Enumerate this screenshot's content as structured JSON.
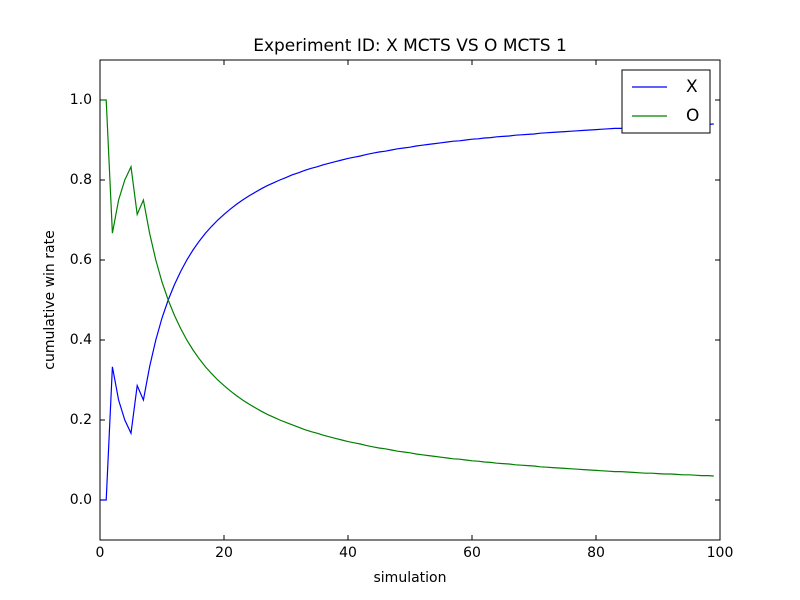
{
  "chart_data": {
    "type": "line",
    "title": "Experiment ID: X MCTS VS O MCTS 1",
    "x_label": "simulation",
    "y_label": "cumulative win rate",
    "x": [
      0,
      1,
      2,
      3,
      4,
      5,
      6,
      7,
      8,
      9,
      10,
      11,
      12,
      13,
      14,
      15,
      16,
      17,
      18,
      19,
      20,
      21,
      22,
      23,
      24,
      25,
      26,
      27,
      28,
      29,
      30,
      31,
      32,
      33,
      34,
      35,
      36,
      37,
      38,
      39,
      40,
      41,
      42,
      43,
      44,
      45,
      46,
      47,
      48,
      49,
      50,
      51,
      52,
      53,
      54,
      55,
      56,
      57,
      58,
      59,
      60,
      61,
      62,
      63,
      64,
      65,
      66,
      67,
      68,
      69,
      70,
      71,
      72,
      73,
      74,
      75,
      76,
      77,
      78,
      79,
      80,
      81,
      82,
      83,
      84,
      85,
      86,
      87,
      88,
      89,
      90,
      91,
      92,
      93,
      94,
      95,
      96,
      97,
      98,
      99
    ],
    "series": [
      {
        "name": "X",
        "color": "#0000ff",
        "values": [
          0,
          0,
          0.333,
          0.25,
          0.2,
          0.167,
          0.286,
          0.25,
          0.333,
          0.4,
          0.455,
          0.5,
          0.538,
          0.571,
          0.6,
          0.625,
          0.647,
          0.667,
          0.684,
          0.7,
          0.714,
          0.727,
          0.739,
          0.75,
          0.76,
          0.769,
          0.778,
          0.786,
          0.793,
          0.8,
          0.806,
          0.813,
          0.818,
          0.824,
          0.829,
          0.833,
          0.838,
          0.842,
          0.846,
          0.85,
          0.854,
          0.857,
          0.86,
          0.864,
          0.867,
          0.87,
          0.872,
          0.875,
          0.878,
          0.88,
          0.882,
          0.885,
          0.887,
          0.889,
          0.891,
          0.893,
          0.895,
          0.897,
          0.898,
          0.9,
          0.902,
          0.903,
          0.905,
          0.906,
          0.908,
          0.909,
          0.91,
          0.912,
          0.913,
          0.914,
          0.915,
          0.917,
          0.918,
          0.919,
          0.92,
          0.921,
          0.922,
          0.923,
          0.924,
          0.925,
          0.926,
          0.927,
          0.928,
          0.929,
          0.929,
          0.93,
          0.931,
          0.932,
          0.933,
          0.933,
          0.934,
          0.935,
          0.935,
          0.936,
          0.937,
          0.938,
          0.938,
          0.939,
          0.939,
          0.94
        ]
      },
      {
        "name": "O",
        "color": "#008000",
        "values": [
          1,
          1,
          0.667,
          0.75,
          0.8,
          0.833,
          0.714,
          0.75,
          0.667,
          0.6,
          0.545,
          0.5,
          0.462,
          0.429,
          0.4,
          0.375,
          0.353,
          0.333,
          0.316,
          0.3,
          0.286,
          0.273,
          0.261,
          0.25,
          0.24,
          0.231,
          0.222,
          0.214,
          0.207,
          0.2,
          0.194,
          0.188,
          0.182,
          0.176,
          0.171,
          0.167,
          0.162,
          0.158,
          0.154,
          0.15,
          0.146,
          0.143,
          0.14,
          0.136,
          0.133,
          0.13,
          0.128,
          0.125,
          0.122,
          0.12,
          0.118,
          0.115,
          0.113,
          0.111,
          0.109,
          0.107,
          0.105,
          0.103,
          0.102,
          0.1,
          0.098,
          0.097,
          0.095,
          0.094,
          0.092,
          0.091,
          0.09,
          0.088,
          0.087,
          0.086,
          0.085,
          0.083,
          0.082,
          0.081,
          0.08,
          0.079,
          0.078,
          0.077,
          0.076,
          0.075,
          0.074,
          0.073,
          0.072,
          0.071,
          0.071,
          0.07,
          0.069,
          0.068,
          0.067,
          0.067,
          0.066,
          0.065,
          0.065,
          0.064,
          0.063,
          0.063,
          0.062,
          0.061,
          0.061,
          0.06
        ]
      }
    ],
    "xlim": [
      0,
      100
    ],
    "xticks": [
      0,
      20,
      40,
      60,
      80,
      100
    ],
    "ylim": [
      -0.1,
      1.1
    ],
    "yticks": [
      {
        "value": 0,
        "label": "0.0"
      },
      0.2,
      0.4,
      0.6,
      0.8,
      {
        "value": 1,
        "label": "1.0"
      }
    ],
    "legend": "upper right"
  }
}
